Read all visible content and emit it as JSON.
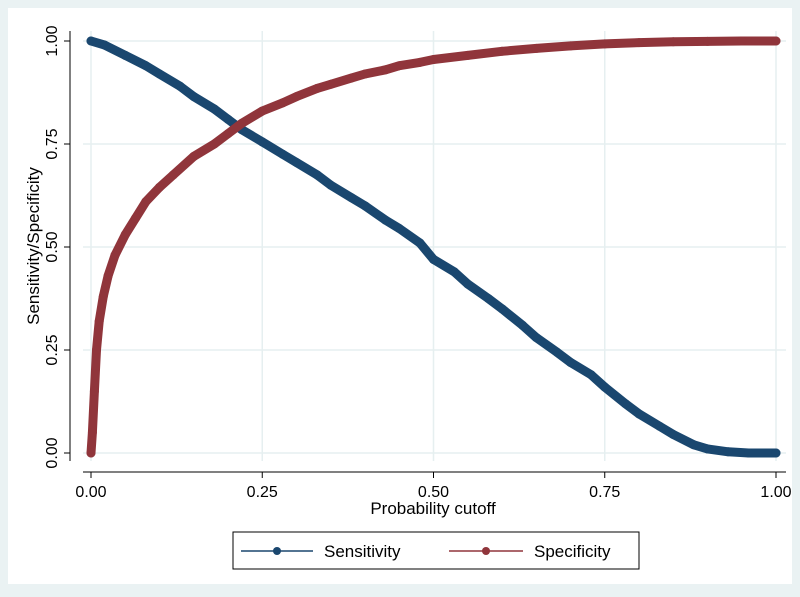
{
  "chart_data": {
    "type": "line",
    "xlabel": "Probability cutoff",
    "ylabel": "Sensitivity/Specificity",
    "xlim": [
      0,
      1
    ],
    "ylim": [
      0,
      1
    ],
    "x_ticks": [
      "0.00",
      "0.25",
      "0.50",
      "0.75",
      "1.00"
    ],
    "y_ticks": [
      "0.00",
      "0.25",
      "0.50",
      "0.75",
      "1.00"
    ],
    "grid": true,
    "legend_position": "bottom",
    "series": [
      {
        "name": "Sensitivity",
        "color": "#1a476f",
        "marker": "circle",
        "points": [
          [
            0.0,
            1.0
          ],
          [
            0.02,
            0.99
          ],
          [
            0.05,
            0.965
          ],
          [
            0.08,
            0.94
          ],
          [
            0.1,
            0.92
          ],
          [
            0.13,
            0.89
          ],
          [
            0.15,
            0.865
          ],
          [
            0.18,
            0.835
          ],
          [
            0.2,
            0.81
          ],
          [
            0.22,
            0.785
          ],
          [
            0.25,
            0.755
          ],
          [
            0.28,
            0.725
          ],
          [
            0.3,
            0.705
          ],
          [
            0.33,
            0.675
          ],
          [
            0.35,
            0.65
          ],
          [
            0.38,
            0.62
          ],
          [
            0.4,
            0.6
          ],
          [
            0.43,
            0.565
          ],
          [
            0.45,
            0.545
          ],
          [
            0.48,
            0.51
          ],
          [
            0.5,
            0.47
          ],
          [
            0.53,
            0.44
          ],
          [
            0.55,
            0.41
          ],
          [
            0.58,
            0.375
          ],
          [
            0.6,
            0.35
          ],
          [
            0.63,
            0.31
          ],
          [
            0.65,
            0.28
          ],
          [
            0.68,
            0.245
          ],
          [
            0.7,
            0.22
          ],
          [
            0.73,
            0.19
          ],
          [
            0.75,
            0.16
          ],
          [
            0.78,
            0.12
          ],
          [
            0.8,
            0.095
          ],
          [
            0.83,
            0.065
          ],
          [
            0.85,
            0.045
          ],
          [
            0.88,
            0.02
          ],
          [
            0.9,
            0.01
          ],
          [
            0.93,
            0.003
          ],
          [
            0.96,
            0.0
          ],
          [
            1.0,
            0.0
          ]
        ]
      },
      {
        "name": "Specificity",
        "color": "#90353b",
        "marker": "circle",
        "points": [
          [
            0.0,
            0.0
          ],
          [
            0.002,
            0.05
          ],
          [
            0.005,
            0.15
          ],
          [
            0.008,
            0.25
          ],
          [
            0.012,
            0.32
          ],
          [
            0.018,
            0.38
          ],
          [
            0.025,
            0.43
          ],
          [
            0.035,
            0.48
          ],
          [
            0.05,
            0.53
          ],
          [
            0.065,
            0.57
          ],
          [
            0.08,
            0.61
          ],
          [
            0.1,
            0.645
          ],
          [
            0.12,
            0.675
          ],
          [
            0.15,
            0.72
          ],
          [
            0.18,
            0.75
          ],
          [
            0.2,
            0.775
          ],
          [
            0.22,
            0.8
          ],
          [
            0.25,
            0.83
          ],
          [
            0.28,
            0.85
          ],
          [
            0.3,
            0.865
          ],
          [
            0.33,
            0.885
          ],
          [
            0.35,
            0.895
          ],
          [
            0.38,
            0.91
          ],
          [
            0.4,
            0.92
          ],
          [
            0.43,
            0.93
          ],
          [
            0.45,
            0.94
          ],
          [
            0.48,
            0.948
          ],
          [
            0.5,
            0.955
          ],
          [
            0.55,
            0.965
          ],
          [
            0.6,
            0.975
          ],
          [
            0.65,
            0.982
          ],
          [
            0.7,
            0.988
          ],
          [
            0.75,
            0.993
          ],
          [
            0.8,
            0.996
          ],
          [
            0.85,
            0.998
          ],
          [
            0.9,
            0.999
          ],
          [
            0.95,
            1.0
          ],
          [
            0.97,
            1.0
          ],
          [
            1.0,
            1.0
          ]
        ]
      }
    ]
  }
}
